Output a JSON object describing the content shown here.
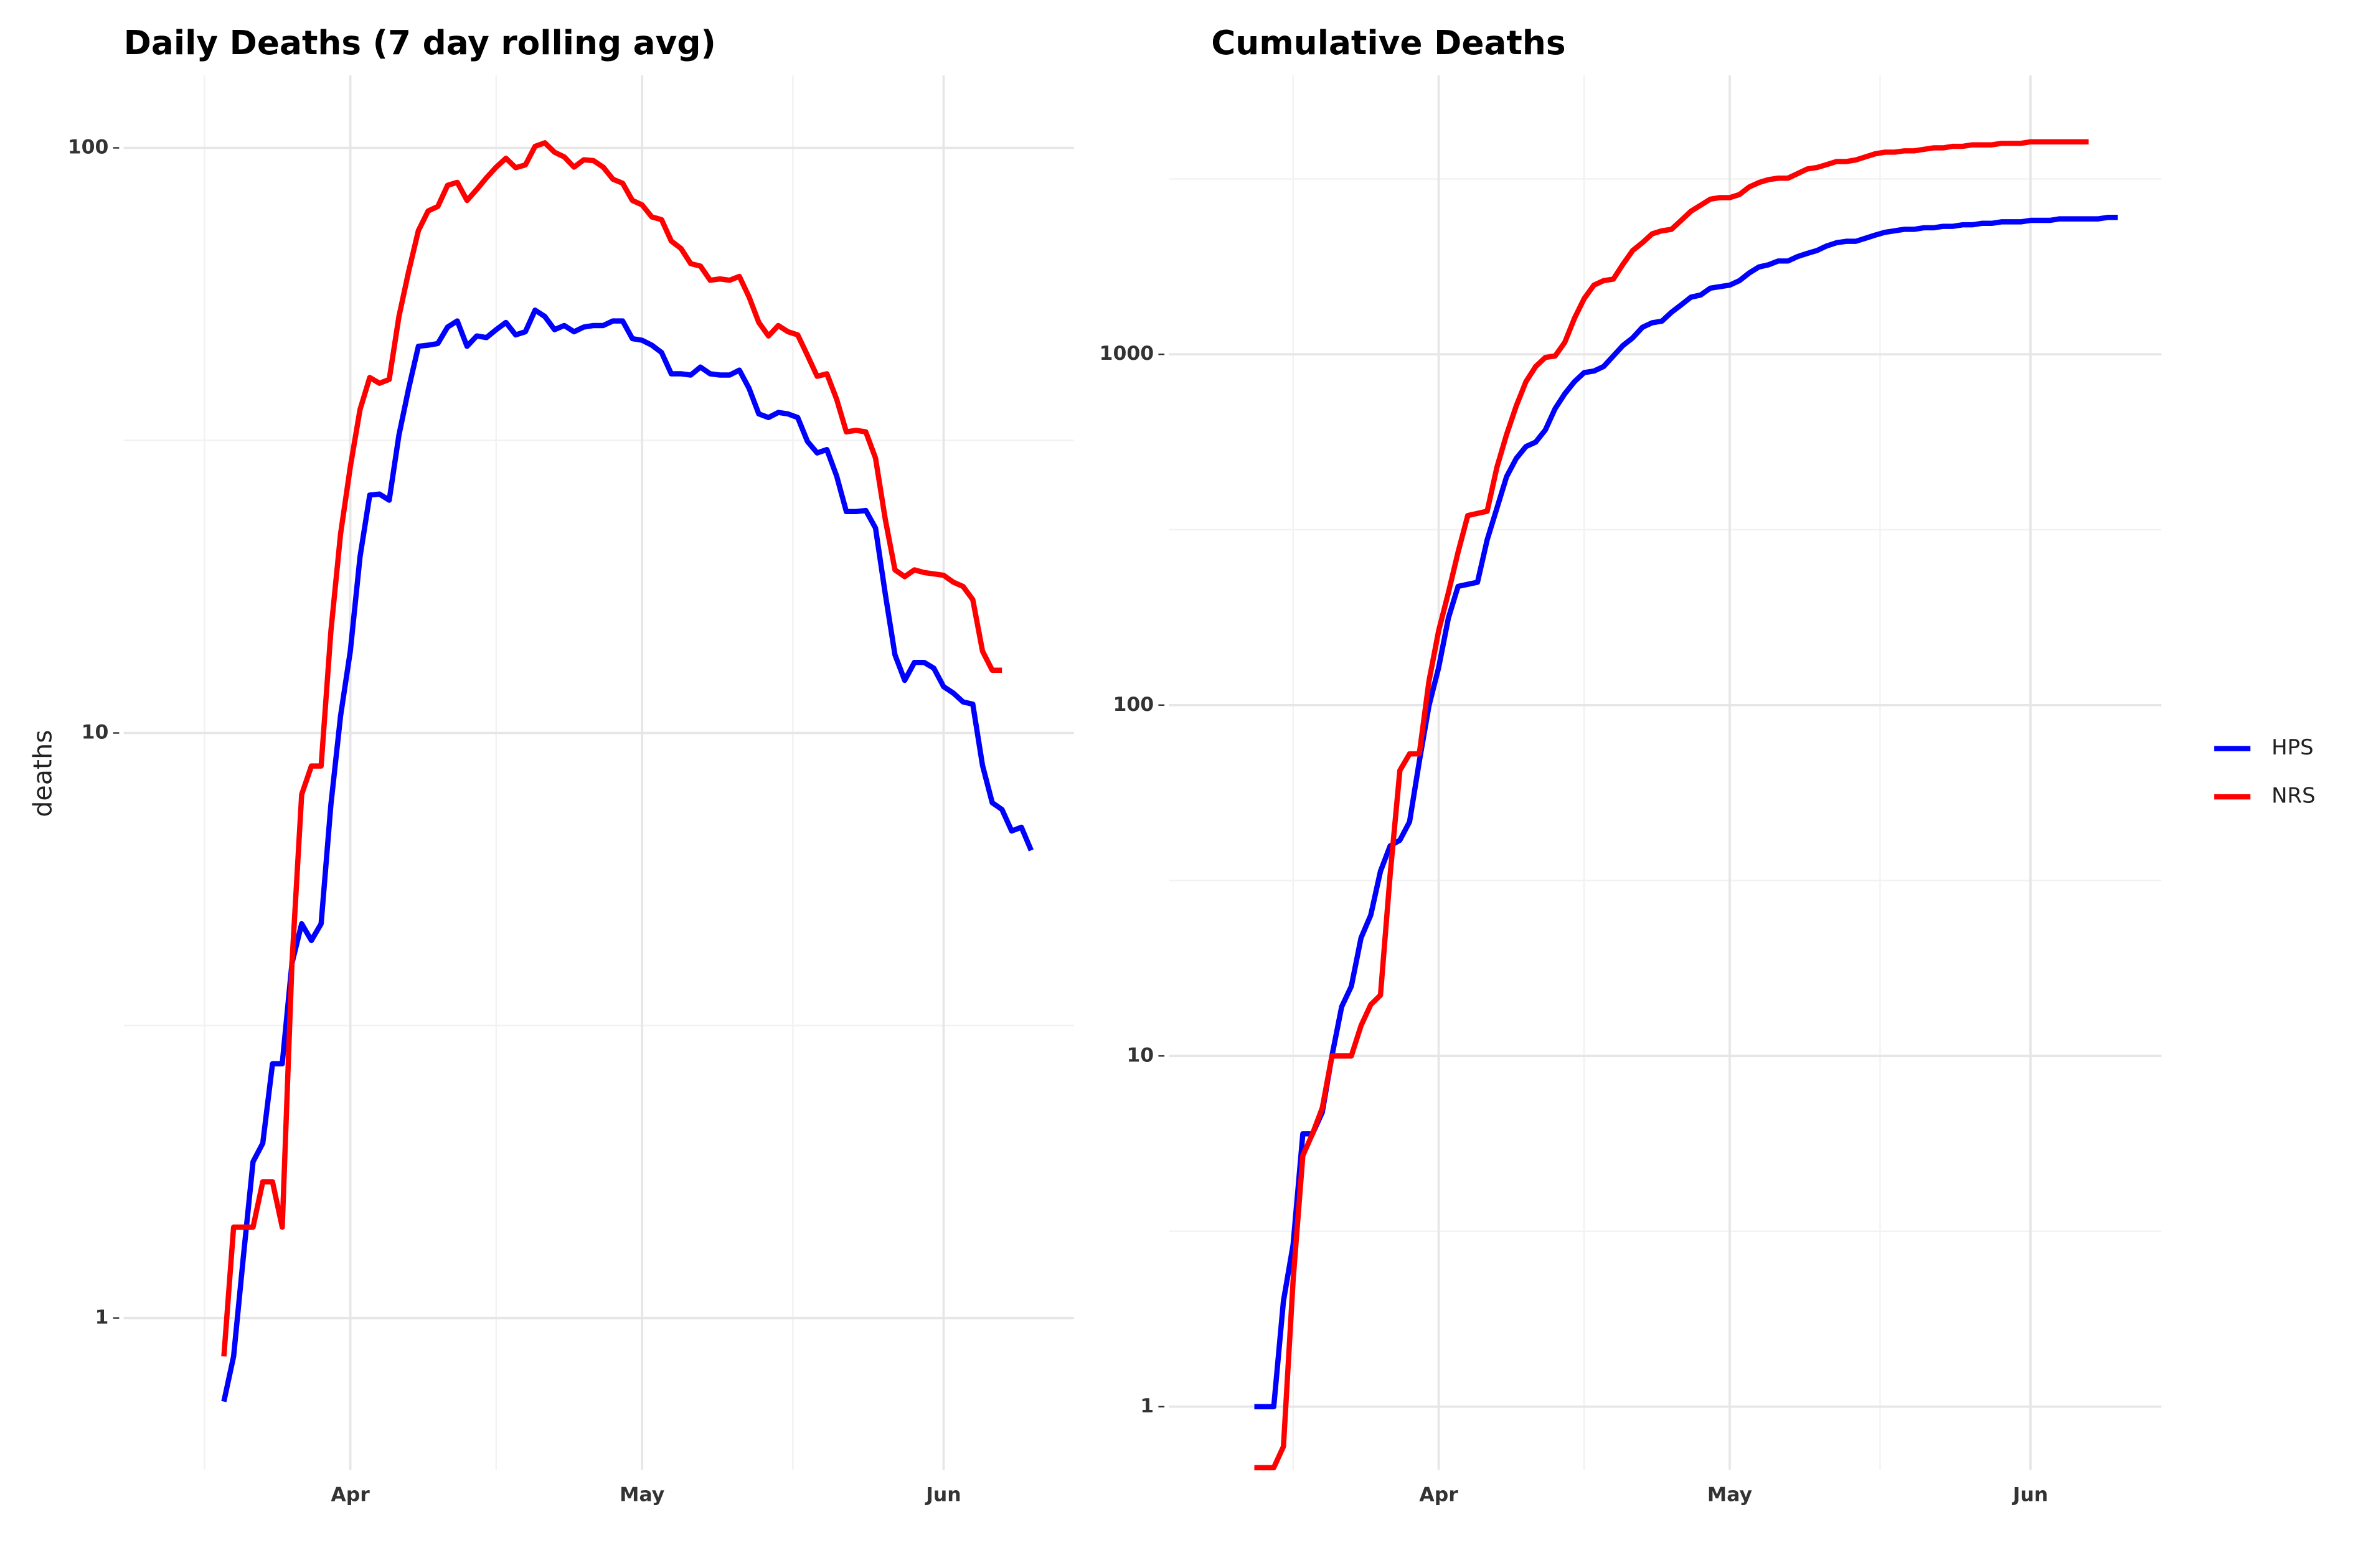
{
  "chart_data": [
    {
      "type": "line",
      "title": "Daily Deaths (7 day rolling avg)",
      "y_label": "deaths",
      "yscale": "log",
      "grid": true,
      "xlim": [
        -23.3,
        74.4
      ],
      "xticks": [
        {
          "value": 0,
          "label": "Apr"
        },
        {
          "value": 30,
          "label": "May"
        },
        {
          "value": 61,
          "label": "Jun"
        }
      ],
      "ylim": [
        0.55,
        133
      ],
      "yticks": [
        1,
        10,
        100
      ],
      "x": [
        -13,
        -12,
        -11,
        -10,
        -9,
        -8,
        -7,
        -6,
        -5,
        -4,
        -3,
        -2,
        -1,
        0,
        1,
        2,
        3,
        4,
        5,
        6,
        7,
        8,
        9,
        10,
        11,
        12,
        13,
        14,
        15,
        16,
        17,
        18,
        19,
        20,
        21,
        22,
        23,
        24,
        25,
        26,
        27,
        28,
        29,
        30,
        31,
        32,
        33,
        34,
        35,
        36,
        37,
        38,
        39,
        40,
        41,
        42,
        43,
        44,
        45,
        46,
        47,
        48,
        49,
        50,
        51,
        52,
        53,
        54,
        55,
        56,
        57,
        58,
        59,
        60,
        61,
        62,
        63,
        64,
        65,
        66,
        67,
        68,
        69,
        70
      ],
      "series": [
        {
          "color": "#0000ff",
          "values": [
            0.72,
            0.86,
            1.27,
            1.85,
            1.99,
            2.72,
            2.72,
            4.04,
            4.72,
            4.42,
            4.72,
            7.53,
            10.7,
            13.8,
            20.0,
            25.5,
            25.6,
            25.0,
            32.3,
            38.8,
            45.8,
            46.0,
            46.3,
            49.4,
            50.6,
            45.8,
            47.7,
            47.4,
            48.9,
            50.3,
            47.9,
            48.5,
            52.8,
            51.5,
            48.9,
            49.7,
            48.5,
            49.4,
            49.7,
            49.7,
            50.6,
            50.6,
            47.2,
            46.9,
            46.0,
            44.7,
            41.1,
            41.1,
            40.9,
            42.2,
            41.1,
            40.9,
            40.9,
            41.7,
            38.8,
            35.1,
            34.6,
            35.3,
            35.1,
            34.6,
            31.5,
            30.1,
            30.5,
            27.5,
            23.9,
            23.9,
            24.0,
            22.4,
            17.3,
            13.6,
            12.3,
            13.2,
            13.2,
            12.9,
            12.0,
            11.7,
            11.3,
            11.2,
            8.8,
            7.6,
            7.4,
            6.8,
            6.9,
            6.3
          ]
        },
        {
          "color": "#ff0000",
          "values": [
            0.86,
            1.43,
            1.43,
            1.43,
            1.71,
            1.71,
            1.43,
            4.04,
            7.85,
            8.78,
            8.78,
            14.9,
            21.9,
            28.5,
            35.7,
            40.5,
            39.6,
            40.2,
            51.5,
            61.5,
            72.2,
            78.0,
            79.4,
            86.3,
            87.3,
            81.3,
            84.9,
            88.9,
            92.7,
            96.0,
            92.5,
            93.5,
            100.6,
            102,
            98.3,
            96.5,
            92.7,
            95.4,
            95.1,
            92.7,
            88.4,
            87.0,
            81.3,
            79.9,
            76.2,
            75.4,
            69.3,
            67.3,
            63.4,
            62.8,
            59.4,
            59.7,
            59.4,
            60.3,
            55.6,
            50.3,
            47.7,
            49.7,
            48.5,
            47.9,
            44.2,
            40.7,
            41.1,
            37.2,
            32.7,
            32.9,
            32.7,
            29.5,
            23.2,
            19.0,
            18.5,
            19.0,
            18.8,
            18.7,
            18.6,
            18.1,
            17.8,
            16.9,
            13.8,
            12.8,
            12.8,
            null,
            null,
            null
          ]
        }
      ]
    },
    {
      "type": "line",
      "title": "Cumulative Deaths",
      "yscale": "log",
      "grid": true,
      "legend_position": "right",
      "xlim": [
        -27.8,
        74.5
      ],
      "xticks": [
        {
          "value": 0,
          "label": "Apr"
        },
        {
          "value": 30,
          "label": "May"
        },
        {
          "value": 61,
          "label": "Jun"
        }
      ],
      "ylim": [
        0.66,
        6240
      ],
      "yticks": [
        1,
        10,
        100,
        1000
      ],
      "x": [
        -19,
        -18,
        -17,
        -16,
        -15,
        -14,
        -13,
        -12,
        -11,
        -10,
        -9,
        -8,
        -7,
        -6,
        -5,
        -4,
        -3,
        -2,
        -1,
        0,
        1,
        2,
        3,
        4,
        5,
        6,
        7,
        8,
        9,
        10,
        11,
        12,
        13,
        14,
        15,
        16,
        17,
        18,
        19,
        20,
        21,
        22,
        23,
        24,
        25,
        26,
        27,
        28,
        29,
        30,
        31,
        32,
        33,
        34,
        35,
        36,
        37,
        38,
        39,
        40,
        41,
        42,
        43,
        44,
        45,
        46,
        47,
        48,
        49,
        50,
        51,
        52,
        53,
        54,
        55,
        56,
        57,
        58,
        59,
        60,
        61,
        62,
        63,
        64,
        65,
        66,
        67,
        68,
        69,
        70
      ],
      "series": [
        {
          "name": "HPS",
          "color": "#0000ff",
          "values": [
            1,
            1,
            1,
            2.0,
            2.9,
            6.0,
            6.0,
            6.9,
            10,
            13.8,
            15.8,
            21.7,
            25.2,
            33.6,
            39.7,
            41.2,
            46.5,
            69,
            99.6,
            128,
            177,
            218,
            221,
            224,
            296,
            364,
            448,
            505,
            546,
            562,
            609,
            700,
            772,
            836,
            887,
            896,
            923,
            989,
            1060,
            1114,
            1194,
            1230,
            1243,
            1318,
            1384,
            1455,
            1476,
            1544,
            1560,
            1575,
            1622,
            1705,
            1774,
            1800,
            1845,
            1845,
            1900,
            1940,
            1977,
            2037,
            2080,
            2100,
            2100,
            2143,
            2187,
            2228,
            2250,
            2272,
            2272,
            2295,
            2295,
            2317,
            2317,
            2340,
            2340,
            2363,
            2363,
            2386,
            2386,
            2386,
            2409,
            2409,
            2409,
            2433,
            2433,
            2433,
            2433,
            2433,
            2457,
            2457
          ]
        },
        {
          "name": "NRS",
          "color": "#ff0000",
          "values": [
            0.67,
            0.67,
            0.67,
            0.77,
            2.3,
            5.2,
            6.0,
            7.1,
            10,
            10,
            10,
            12.2,
            14.0,
            14.9,
            32.9,
            65.1,
            72.6,
            72.6,
            117,
            163,
            209,
            273,
            347,
            352,
            357,
            476,
            591,
            713,
            836,
            923,
            980,
            989,
            1082,
            1267,
            1442,
            1575,
            1622,
            1638,
            1807,
            1977,
            2080,
            2205,
            2250,
            2272,
            2409,
            2558,
            2661,
            2769,
            2797,
            2797,
            2854,
            2999,
            3087,
            3148,
            3178,
            3178,
            3275,
            3376,
            3409,
            3474,
            3545,
            3545,
            3582,
            3655,
            3730,
            3770,
            3770,
            3803,
            3803,
            3840,
            3878,
            3878,
            3917,
            3917,
            3955,
            3955,
            3955,
            3994,
            3994,
            3994,
            4034,
            4034,
            4034,
            4034,
            4034,
            4034,
            4034,
            null,
            null,
            null
          ]
        }
      ]
    }
  ]
}
